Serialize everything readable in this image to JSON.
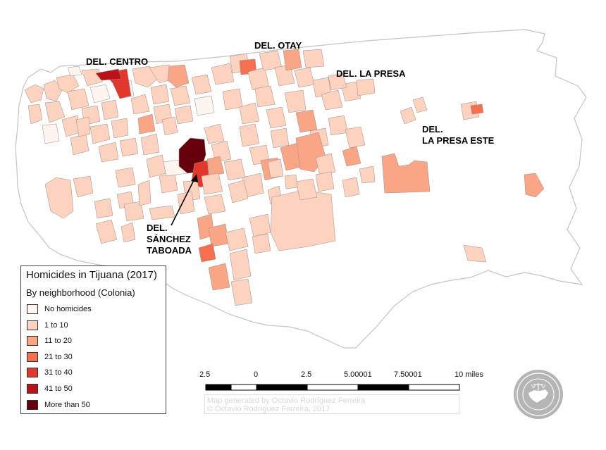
{
  "districts": [
    {
      "id": "centro",
      "label": "DEL. CENTRO"
    },
    {
      "id": "otay",
      "label": "DEL. OTAY"
    },
    {
      "id": "la_presa",
      "label": "DEL. LA PRESA"
    },
    {
      "id": "la_presa_este",
      "label": "DEL.\nLA PRESA ESTE"
    },
    {
      "id": "sanchez_taboada",
      "label": "DEL.\nSÁNCHEZ\nTABOADA"
    }
  ],
  "legend": {
    "title": "Homicides in Tijuana (2017)",
    "subtitle": "By neighborhood (Colonia)",
    "items": [
      {
        "label": "No homicides",
        "color": "#fff5f0"
      },
      {
        "label": "1 to 10",
        "color": "#fdd3c0"
      },
      {
        "label": "11 to 20",
        "color": "#fba587"
      },
      {
        "label": "21 to 30",
        "color": "#f66f4e"
      },
      {
        "label": "31 to 40",
        "color": "#e2382b"
      },
      {
        "label": "41 to 50",
        "color": "#b91319"
      },
      {
        "label": "More than 50",
        "color": "#67000d"
      }
    ]
  },
  "scale_bar": {
    "labels": [
      "2.5",
      "0",
      "2.5",
      "5.00001",
      "7.50001",
      "10 miles"
    ]
  },
  "credit": {
    "line1": "Map generated by Octavio Rodríguez Ferreira",
    "line2": "© Octavio Rodríguez Ferreira, 2017"
  },
  "seal": {
    "text": "JUSTICE IN MEXICO",
    "icon": "justice-in-mexico-seal"
  },
  "colors": {
    "boundary": "#c4c4c4",
    "land": "#ffffff",
    "neighborhood_stroke": "#9a8a86"
  }
}
